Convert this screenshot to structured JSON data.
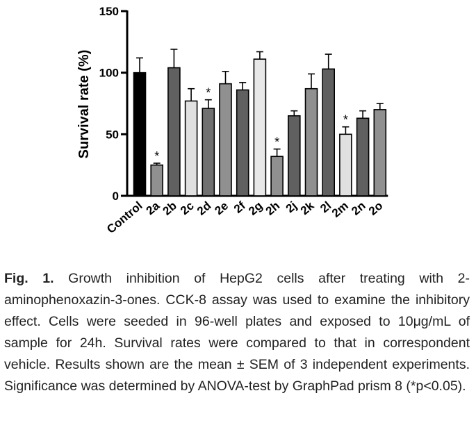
{
  "chart_data": {
    "type": "bar",
    "title": "",
    "xlabel": "",
    "ylabel": "Survival rate (%)",
    "ylim": [
      0,
      150
    ],
    "yticks": [
      "0",
      "50",
      "100",
      "150"
    ],
    "categories": [
      "Control",
      "2a",
      "2b",
      "2c",
      "2d",
      "2e",
      "2f",
      "2g",
      "2h",
      "2j",
      "2k",
      "2l",
      "2m",
      "2n",
      "2o"
    ],
    "values": [
      100,
      25,
      104,
      77,
      71,
      91,
      86,
      111,
      32,
      65,
      87,
      103,
      50,
      63,
      70
    ],
    "errors": [
      12,
      1.5,
      15,
      10,
      7,
      10,
      6,
      6,
      6,
      4,
      12,
      12,
      6,
      6,
      5
    ],
    "significance": [
      "",
      "*",
      "",
      "",
      "*",
      "",
      "",
      "",
      "*",
      "",
      "",
      "",
      "*",
      "",
      ""
    ],
    "colors": [
      "#000000",
      "#909090",
      "#606060",
      "#e0e0e0",
      "#707070",
      "#909090",
      "#606060",
      "#e8e8e8",
      "#909090",
      "#606060",
      "#909090",
      "#606060",
      "#e0e0e0",
      "#606060",
      "#909090"
    ],
    "grid": false
  },
  "caption": {
    "label": "Fig. 1.",
    "text": " Growth inhibition of HepG2 cells after treating with 2-aminophenoxazin-3-ones. CCK-8 assay was used to examine the inhibitory effect. Cells were seeded in 96-well plates and exposed to 10μg/mL of sample for 24h. Survival rates were compared to that in correspondent vehicle. Results shown are the mean ± SEM of 3 independent experiments. Significance was determined by ANOVA-test by GraphPad prism 8 (*p<0.05)."
  }
}
